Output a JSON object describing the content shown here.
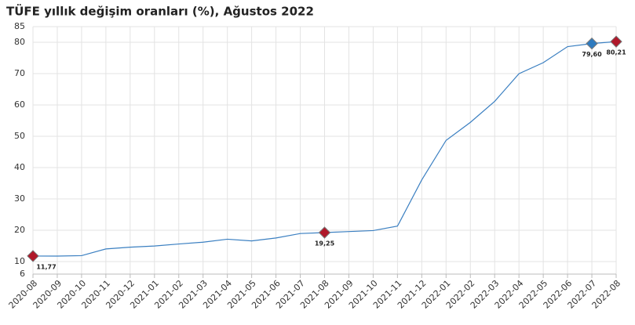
{
  "chart_data": {
    "type": "line",
    "title": "TÜFE yıllık değişim oranları (%), Ağustos 2022",
    "categories": [
      "2020-08",
      "2020-09",
      "2020-10",
      "2020-11",
      "2020-12",
      "2021-01",
      "2021-02",
      "2021-03",
      "2021-04",
      "2021-05",
      "2021-06",
      "2021-07",
      "2021-08",
      "2021-09",
      "2021-10",
      "2021-11",
      "2021-12",
      "2022-01",
      "2022-02",
      "2022-03",
      "2022-04",
      "2022-05",
      "2022-06",
      "2022-07",
      "2022-08"
    ],
    "values": [
      11.77,
      11.75,
      11.89,
      14.03,
      14.6,
      14.97,
      15.61,
      16.19,
      17.14,
      16.59,
      17.53,
      18.95,
      19.25,
      19.58,
      19.89,
      21.31,
      36.08,
      48.69,
      54.44,
      61.14,
      69.97,
      73.5,
      78.62,
      79.6,
      80.21
    ],
    "value_labels": [
      "11,77",
      null,
      null,
      null,
      null,
      null,
      null,
      null,
      null,
      null,
      null,
      null,
      "19,25",
      null,
      null,
      null,
      null,
      null,
      null,
      null,
      null,
      null,
      null,
      "79,60",
      "80,21"
    ],
    "marker_colors": [
      "#b0182a",
      null,
      null,
      null,
      null,
      null,
      null,
      null,
      null,
      null,
      null,
      null,
      "#b0182a",
      null,
      null,
      null,
      null,
      null,
      null,
      null,
      null,
      null,
      null,
      "#2f7bbf",
      "#b0182a"
    ],
    "color": "#3a7fc1",
    "ylim": [
      6,
      85
    ],
    "yticks": [
      6,
      10,
      20,
      30,
      40,
      50,
      60,
      70,
      80,
      85
    ],
    "grid": true
  }
}
